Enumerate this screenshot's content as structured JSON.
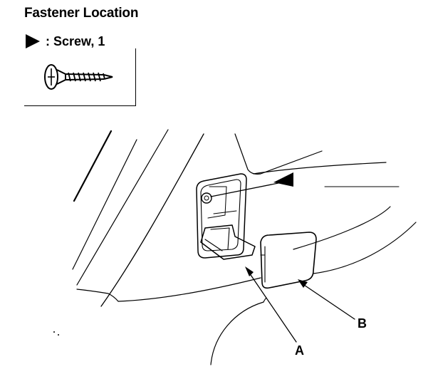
{
  "header": {
    "title": "Fastener Location"
  },
  "legend": {
    "marker_icon": "filled-triangle-icon",
    "label": ": Screw, 1"
  },
  "callouts": {
    "a_label": "A",
    "b_label": "B"
  },
  "colors": {
    "ink": "#000000",
    "paper": "#ffffff"
  }
}
